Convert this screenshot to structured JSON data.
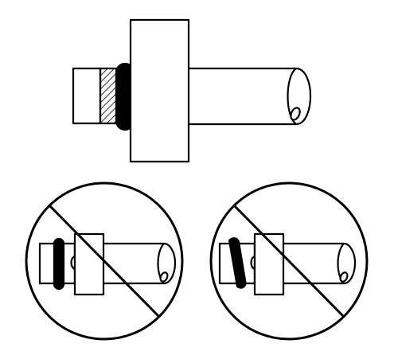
{
  "figure": {
    "background": "#ffffff",
    "line_color": "#000000",
    "panels": [
      {
        "name": "correct-installation",
        "prohibited": false,
        "oring": "seated-square",
        "backup_ring": "hatched"
      },
      {
        "name": "incorrect-installation-no-backup",
        "prohibited": true,
        "oring": "seated-square",
        "backup_ring": "none"
      },
      {
        "name": "incorrect-installation-twisted",
        "prohibited": true,
        "oring": "twisted",
        "backup_ring": "none"
      }
    ]
  }
}
